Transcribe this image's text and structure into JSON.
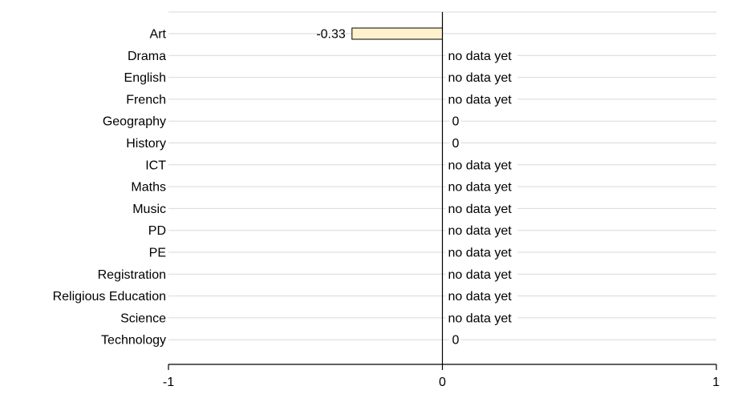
{
  "chart_data": {
    "type": "bar",
    "orientation": "horizontal",
    "title": "",
    "xlabel": "",
    "ylabel": "",
    "categories": [
      "Art",
      "Drama",
      "English",
      "French",
      "Geography",
      "History",
      "ICT",
      "Maths",
      "Music",
      "PD",
      "PE",
      "Registration",
      "Religious Education",
      "Science",
      "Technology"
    ],
    "values": [
      -0.33,
      null,
      null,
      null,
      0,
      0,
      null,
      null,
      null,
      null,
      null,
      null,
      null,
      null,
      0
    ],
    "data_labels": [
      "-0.33",
      "no data yet",
      "no data yet",
      "no data yet",
      "0",
      "0",
      "no data yet",
      "no data yet",
      "no data yet",
      "no data yet",
      "no data yet",
      "no data yet",
      "no data yet",
      "no data yet",
      "0"
    ],
    "xlim": [
      -1,
      1
    ],
    "x_ticks": [
      "-1",
      "0",
      "1"
    ],
    "grid": "horizontal",
    "legend": "none",
    "colors": {
      "bar_fill": "#FFF2CC",
      "bar_stroke": "#000000",
      "grid": "#D9D9D9",
      "axis": "#000000"
    }
  }
}
